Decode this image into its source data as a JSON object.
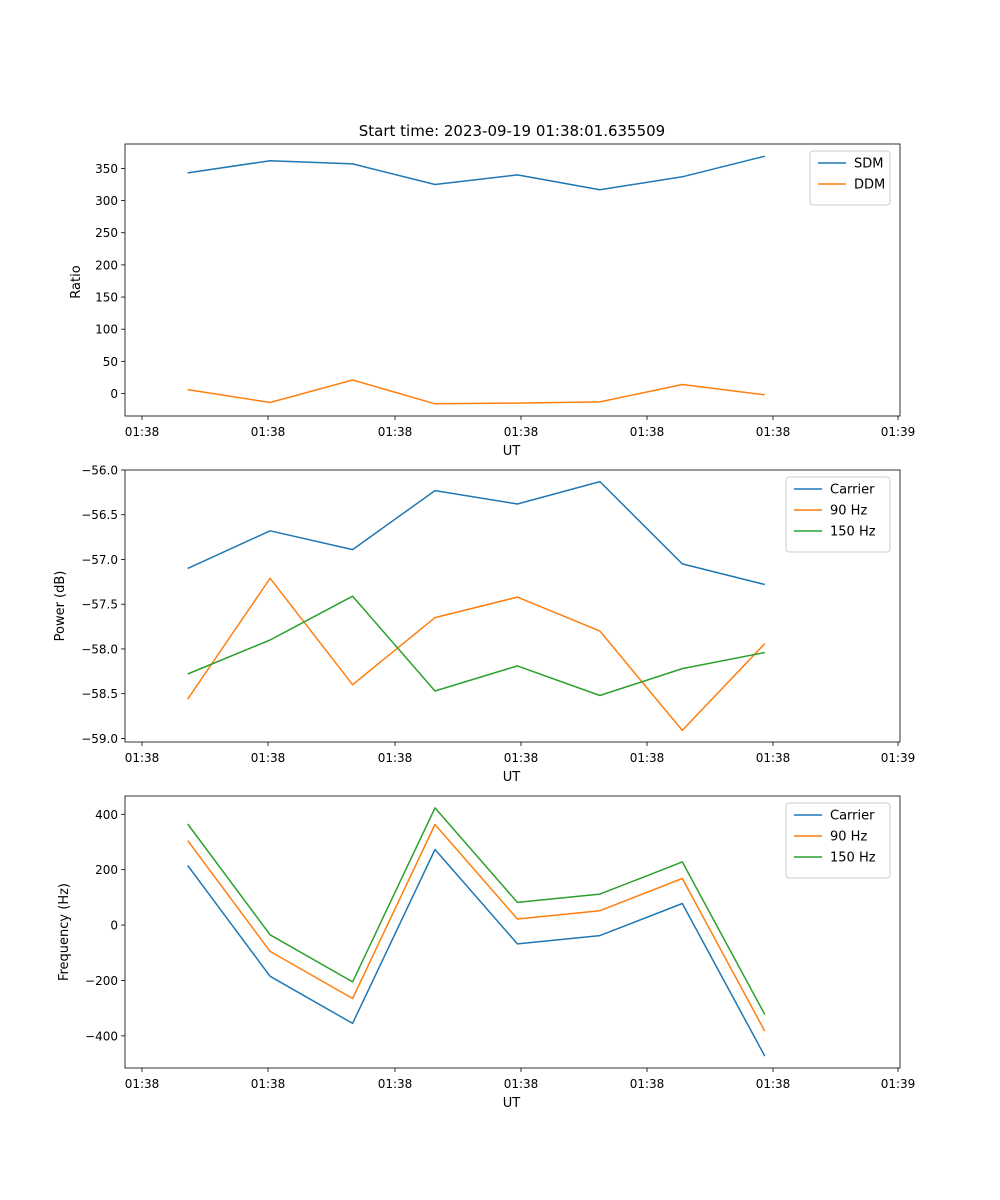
{
  "figure": {
    "title": "Start time: 2023-09-19 01:38:01.635509"
  },
  "chart_data": [
    {
      "type": "line",
      "xlabel": "UT",
      "ylabel": "Ratio",
      "x_tick_labels": [
        "01:38",
        "01:38",
        "01:38",
        "01:38",
        "01:38",
        "01:38",
        "01:39"
      ],
      "y_ticks": [
        0,
        50,
        100,
        150,
        200,
        250,
        300,
        350
      ],
      "y_tick_labels": [
        "0",
        "50",
        "100",
        "150",
        "200",
        "250",
        "300",
        "350"
      ],
      "ylim": [
        -35,
        388
      ],
      "legend": "top-right",
      "x": [
        1,
        2,
        3,
        4,
        5,
        6,
        7,
        8
      ],
      "xlim": [
        0.24,
        9.64
      ],
      "series": [
        {
          "name": "SDM",
          "color": "#1f77b4",
          "values": [
            343,
            362,
            357,
            325,
            340,
            317,
            337,
            369
          ]
        },
        {
          "name": "DDM",
          "color": "#ff7f0e",
          "values": [
            6,
            -14,
            21,
            -16,
            -15,
            -13,
            14,
            -2
          ]
        }
      ]
    },
    {
      "type": "line",
      "xlabel": "UT",
      "ylabel": "Power (dB)",
      "x_tick_labels": [
        "01:38",
        "01:38",
        "01:38",
        "01:38",
        "01:38",
        "01:38",
        "01:39"
      ],
      "y_ticks": [
        -56.0,
        -56.5,
        -57.0,
        -57.5,
        -58.0,
        -58.5,
        -59.0
      ],
      "y_tick_labels": [
        "−56.0",
        "−56.5",
        "−57.0",
        "−57.5",
        "−58.0",
        "−58.5",
        "−59.0"
      ],
      "ylim": [
        -59.04,
        -56.0
      ],
      "legend": "top-right",
      "x": [
        1,
        2,
        3,
        4,
        5,
        6,
        7,
        8
      ],
      "xlim": [
        0.24,
        9.64
      ],
      "series": [
        {
          "name": "Carrier",
          "color": "#1f77b4",
          "values": [
            -57.1,
            -56.68,
            -56.89,
            -56.23,
            -56.38,
            -56.13,
            -57.05,
            -57.28
          ]
        },
        {
          "name": "90 Hz",
          "color": "#ff7f0e",
          "values": [
            -58.56,
            -57.21,
            -58.4,
            -57.65,
            -57.42,
            -57.8,
            -58.91,
            -57.94
          ]
        },
        {
          "name": "150 Hz",
          "color": "#2ca02c",
          "values": [
            -58.28,
            -57.9,
            -57.41,
            -58.47,
            -58.19,
            -58.52,
            -58.22,
            -58.04
          ]
        }
      ]
    },
    {
      "type": "line",
      "xlabel": "UT",
      "ylabel": "Frequency (Hz)",
      "x_tick_labels": [
        "01:38",
        "01:38",
        "01:38",
        "01:38",
        "01:38",
        "01:38",
        "01:39"
      ],
      "y_ticks": [
        400,
        200,
        0,
        -200,
        -400
      ],
      "y_tick_labels": [
        "400",
        "200",
        "0",
        "−200",
        "−400"
      ],
      "ylim": [
        -516,
        466
      ],
      "legend": "top-right",
      "x": [
        1,
        2,
        3,
        4,
        5,
        6,
        7,
        8
      ],
      "xlim": [
        0.24,
        9.64
      ],
      "series": [
        {
          "name": "Carrier",
          "color": "#1f77b4",
          "values": [
            215,
            -185,
            -355,
            273,
            -68,
            -38,
            78,
            -473
          ]
        },
        {
          "name": "90 Hz",
          "color": "#ff7f0e",
          "values": [
            305,
            -95,
            -265,
            363,
            22,
            52,
            168,
            -383
          ]
        },
        {
          "name": "150 Hz",
          "color": "#2ca02c",
          "values": [
            365,
            -35,
            -205,
            423,
            82,
            112,
            228,
            -323
          ]
        }
      ]
    }
  ]
}
